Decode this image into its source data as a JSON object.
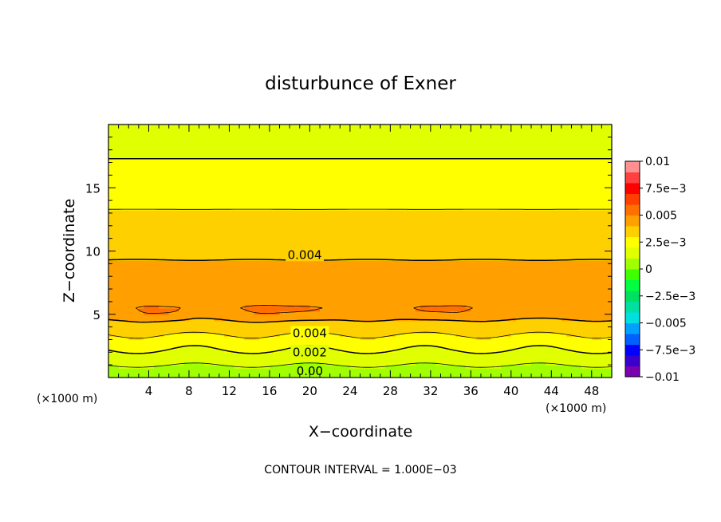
{
  "chart_data": {
    "type": "heatmap",
    "title": "disturbunce of Exner",
    "xlabel": "X−coordinate",
    "ylabel": "Z−coordinate",
    "x_unit": "(×1000 m)",
    "x_unit_right": "(×1000 m)",
    "footer": "CONTOUR INTERVAL = 1.000E−03",
    "xlim": [
      0,
      50
    ],
    "ylim": [
      0,
      20
    ],
    "x_ticks": [
      4,
      8,
      12,
      16,
      20,
      24,
      28,
      32,
      36,
      40,
      44,
      48
    ],
    "x_tick_labels": [
      "4",
      "8",
      "12",
      "16",
      "20",
      "24",
      "28",
      "32",
      "36",
      "40",
      "44",
      "48"
    ],
    "y_ticks": [
      5,
      10,
      15
    ],
    "y_tick_labels": [
      "5",
      "10",
      "15"
    ],
    "contour_interval": 0.001,
    "contour_labels": [
      {
        "text": "0.004",
        "x": 19.5,
        "z": 9.7
      },
      {
        "text": "0.004",
        "x": 20.0,
        "z": 3.5
      },
      {
        "text": "0.002",
        "x": 20.0,
        "z": 2.0
      },
      {
        "text": "0.00",
        "x": 20.0,
        "z": 0.5
      }
    ],
    "colorbar": {
      "min": -0.01,
      "max": 0.01,
      "tick_values": [
        0.01,
        0.0075,
        0.005,
        0.0025,
        0,
        -0.0025,
        -0.005,
        -0.0075,
        -0.01
      ],
      "tick_labels": [
        "0.01",
        "7.5e−3",
        "0.005",
        "2.5e−3",
        "0",
        "−2.5e−3",
        "−0.005",
        "−7.5e−3",
        "−0.01"
      ],
      "colors": [
        "#7a00b0",
        "#3a00cc",
        "#0000ff",
        "#0060ff",
        "#00a0ff",
        "#00e0e0",
        "#00e0a0",
        "#00e060",
        "#00ff40",
        "#40ff00",
        "#a0ff00",
        "#e0ff00",
        "#ffff00",
        "#ffd000",
        "#ffa000",
        "#ff7000",
        "#ff4000",
        "#ff0000",
        "#ff4040",
        "#ff9090"
      ]
    }
  }
}
